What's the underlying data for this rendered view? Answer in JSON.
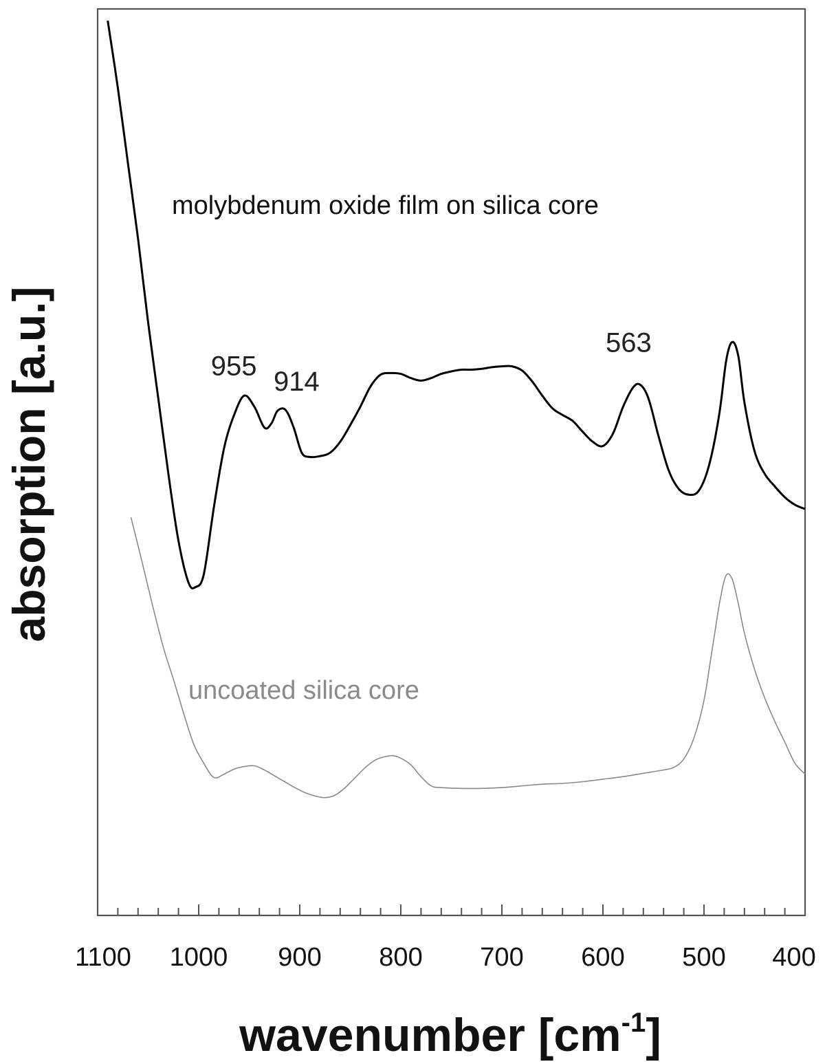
{
  "chart_data": {
    "type": "line",
    "title": "",
    "xlabel": "wavenumber [cm",
    "xlabel_sup": "-1",
    "xlabel_close": "]",
    "ylabel": "absorption [a.u.]",
    "xlim": [
      1100,
      400
    ],
    "ylim": [
      0,
      100
    ],
    "x_reversed": true,
    "y_ticks_shown": false,
    "grid": false,
    "x_ticks": [
      "1100",
      "1000",
      "900",
      "800",
      "700",
      "600",
      "500",
      "400"
    ],
    "series": [
      {
        "name": "molybdenum oxide film on silica core",
        "color": "#000000",
        "x": [
          1090,
          1080,
          1070,
          1060,
          1050,
          1040,
          1030,
          1020,
          1010,
          1003,
          995,
          985,
          975,
          965,
          955,
          945,
          935,
          928,
          922,
          914,
          906,
          898,
          890,
          880,
          870,
          860,
          850,
          840,
          830,
          820,
          810,
          800,
          790,
          780,
          770,
          760,
          750,
          740,
          730,
          720,
          710,
          700,
          690,
          680,
          670,
          660,
          650,
          640,
          630,
          620,
          610,
          600,
          590,
          580,
          570,
          563,
          555,
          545,
          535,
          525,
          515,
          505,
          495,
          485,
          478,
          472,
          466,
          460,
          450,
          440,
          430,
          420,
          410,
          400
        ],
        "y": [
          100,
          92,
          83,
          74,
          64,
          55,
          46,
          38,
          33,
          32.5,
          34,
          42,
          49,
          53,
          55.3,
          54,
          51.5,
          52,
          53.5,
          53.6,
          51.5,
          48.5,
          48,
          48.1,
          48.5,
          49.8,
          51.8,
          54,
          56.4,
          57.8,
          58,
          57.9,
          57.4,
          57.1,
          57.4,
          57.9,
          58.2,
          58.4,
          58.4,
          58.5,
          58.7,
          58.8,
          58.8,
          58.3,
          57,
          55.3,
          53.8,
          53,
          52.3,
          51,
          49.8,
          49.3,
          50.8,
          54,
          56.3,
          56.6,
          55,
          50.5,
          46.4,
          44.2,
          43.5,
          44,
          47,
          53,
          59.5,
          61.7,
          60,
          54.5,
          48.7,
          46,
          44.5,
          43.2,
          42.3,
          41.8
        ]
      },
      {
        "name": "uncoated silica core",
        "color": "#8a8a8a",
        "x": [
          1067,
          1055,
          1045,
          1035,
          1025,
          1015,
          1005,
          995,
          985,
          975,
          965,
          955,
          945,
          935,
          925,
          915,
          905,
          895,
          885,
          875,
          865,
          855,
          845,
          835,
          825,
          815,
          808,
          800,
          790,
          780,
          770,
          760,
          740,
          720,
          700,
          680,
          660,
          640,
          620,
          600,
          580,
          560,
          540,
          530,
          520,
          510,
          500,
          492,
          484,
          478,
          472,
          466,
          460,
          450,
          440,
          430,
          420,
          410,
          400
        ],
        "y": [
          40.8,
          35,
          30,
          25.3,
          21.5,
          17.5,
          13.8,
          11.5,
          9.8,
          10.2,
          10.8,
          11.1,
          11.2,
          10.7,
          10,
          9.3,
          8.6,
          8,
          7.6,
          7.4,
          7.7,
          8.6,
          9.8,
          11,
          11.9,
          12.3,
          12.4,
          12.1,
          11.3,
          9.9,
          8.8,
          8.6,
          8.5,
          8.5,
          8.6,
          8.8,
          9,
          9.1,
          9.3,
          9.6,
          9.9,
          10.3,
          10.7,
          11,
          12,
          14.5,
          19,
          25,
          31,
          33.9,
          33.4,
          30.5,
          27,
          22.7,
          19.3,
          16.5,
          14,
          11.5,
          10.2
        ]
      }
    ],
    "series_label_positions_note": "",
    "peak_annotations": [
      {
        "label": "955",
        "x": 955
      },
      {
        "label": "914",
        "x": 914
      },
      {
        "label": "563",
        "x": 563
      }
    ]
  }
}
